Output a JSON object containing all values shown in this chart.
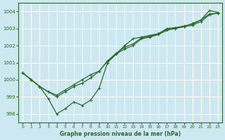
{
  "background_color": "#cde8f0",
  "grid_color": "#b8d8e0",
  "line_color": "#2d6a2d",
  "marker_color": "#2d6a2d",
  "xlabel": "Graphe pression niveau de la mer (hPa)",
  "ylim": [
    997.5,
    1004.5
  ],
  "xlim": [
    -0.5,
    23.5
  ],
  "yticks": [
    998,
    999,
    1000,
    1001,
    1002,
    1003,
    1004
  ],
  "xticks": [
    0,
    1,
    2,
    3,
    4,
    5,
    6,
    7,
    8,
    9,
    10,
    11,
    12,
    13,
    14,
    15,
    16,
    17,
    18,
    19,
    20,
    21,
    22,
    23
  ],
  "series": [
    [
      1000.4,
      1000.0,
      999.6,
      998.9,
      998.0,
      998.3,
      998.7,
      998.5,
      998.8,
      999.5,
      1001.0,
      1001.5,
      1002.0,
      1002.4,
      1002.5,
      1002.6,
      1002.7,
      1003.0,
      1003.05,
      1003.1,
      1003.3,
      1003.5,
      1004.05,
      1003.95
    ],
    [
      1000.4,
      1000.0,
      999.6,
      999.3,
      999.0,
      999.3,
      999.6,
      999.8,
      1000.1,
      1000.5,
      1001.1,
      1001.5,
      1001.8,
      1002.0,
      1002.4,
      1002.5,
      1002.65,
      1002.9,
      1003.0,
      1003.1,
      1003.2,
      1003.4,
      1003.8,
      1003.9
    ],
    [
      1000.4,
      1000.0,
      999.6,
      999.3,
      999.1,
      999.4,
      999.7,
      1000.0,
      1000.3,
      1000.5,
      1001.1,
      1001.55,
      1001.9,
      1002.1,
      1002.45,
      1002.55,
      1002.7,
      1002.95,
      1003.05,
      1003.15,
      1003.25,
      1003.5,
      1003.85,
      1003.9
    ]
  ]
}
